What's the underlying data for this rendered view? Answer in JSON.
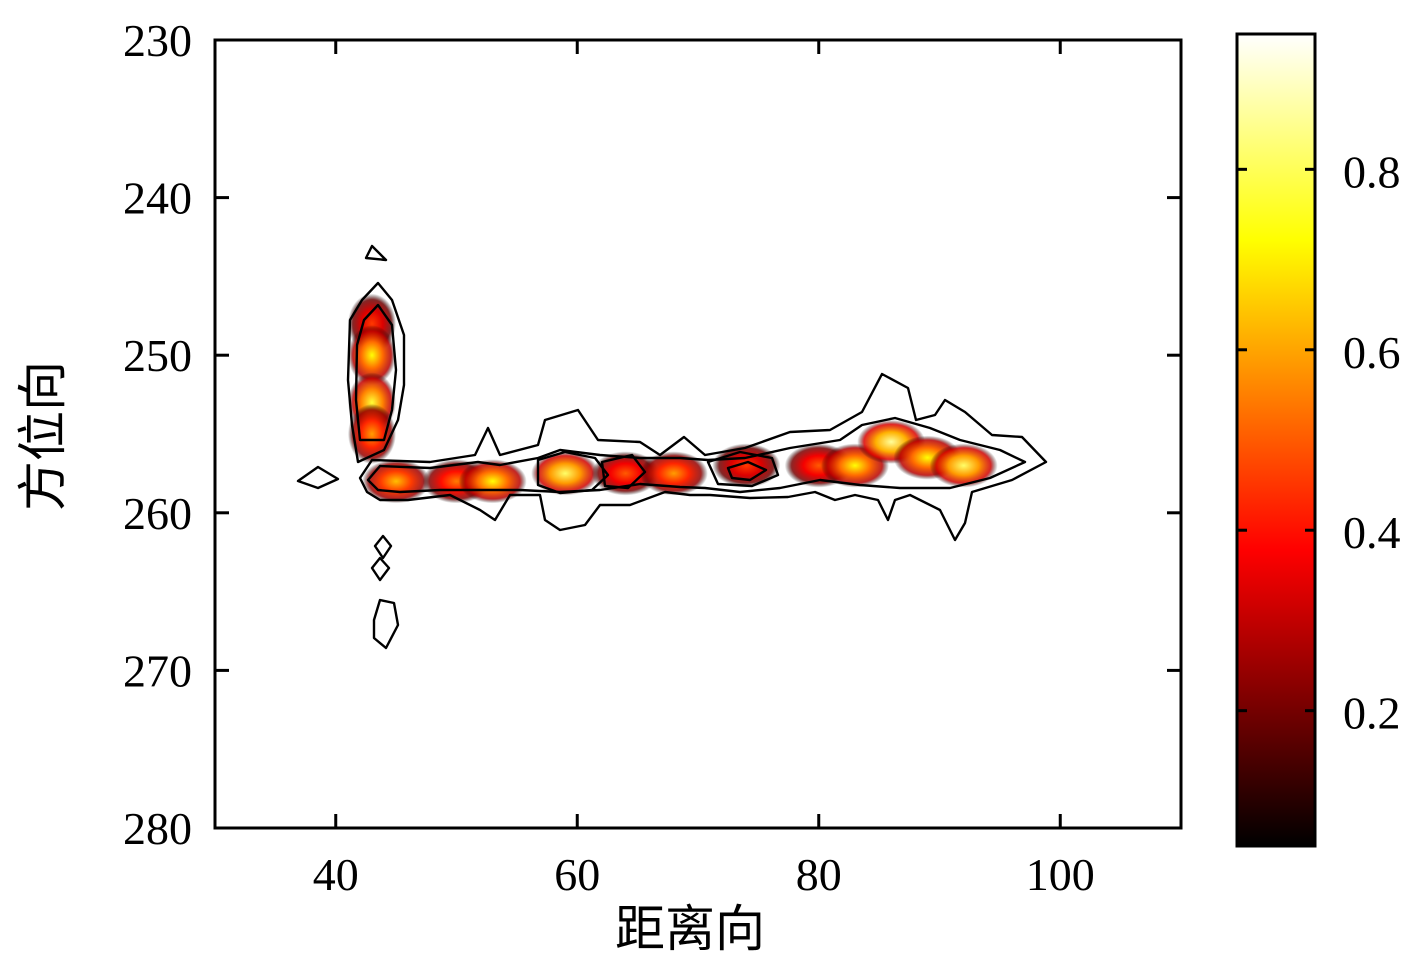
{
  "chart_data": {
    "type": "heatmap",
    "title": "",
    "xlabel": "距离向",
    "ylabel": "方位向",
    "xlim": [
      30,
      110
    ],
    "ylim": [
      280,
      230
    ],
    "y_reversed": true,
    "x_ticks": [
      40,
      60,
      80,
      100
    ],
    "y_ticks": [
      230,
      240,
      250,
      260,
      270,
      280
    ],
    "colorbar": {
      "colormap": "hot",
      "range": [
        0.05,
        0.95
      ],
      "ticks": [
        0.2,
        0.4,
        0.6,
        0.8
      ],
      "tick_labels": [
        "0.2",
        "0.4",
        "0.6",
        "0.8"
      ]
    },
    "grid": false,
    "contour_levels": [
      0.1,
      0.3
    ],
    "hotspots": [
      {
        "x": 43,
        "y": 248,
        "value": 0.45
      },
      {
        "x": 43,
        "y": 250,
        "value": 0.75
      },
      {
        "x": 43,
        "y": 253,
        "value": 0.8
      },
      {
        "x": 43,
        "y": 255,
        "value": 0.6
      },
      {
        "x": 45,
        "y": 258,
        "value": 0.65
      },
      {
        "x": 50,
        "y": 258,
        "value": 0.55
      },
      {
        "x": 53,
        "y": 258,
        "value": 0.75
      },
      {
        "x": 59,
        "y": 257.5,
        "value": 0.85
      },
      {
        "x": 64,
        "y": 257.5,
        "value": 0.5
      },
      {
        "x": 68,
        "y": 257.5,
        "value": 0.6
      },
      {
        "x": 74,
        "y": 257,
        "value": 0.45
      },
      {
        "x": 80,
        "y": 257,
        "value": 0.5
      },
      {
        "x": 83,
        "y": 257,
        "value": 0.75
      },
      {
        "x": 86,
        "y": 255.5,
        "value": 0.9
      },
      {
        "x": 89,
        "y": 256.5,
        "value": 0.75
      },
      {
        "x": 92,
        "y": 257,
        "value": 0.85
      }
    ]
  }
}
